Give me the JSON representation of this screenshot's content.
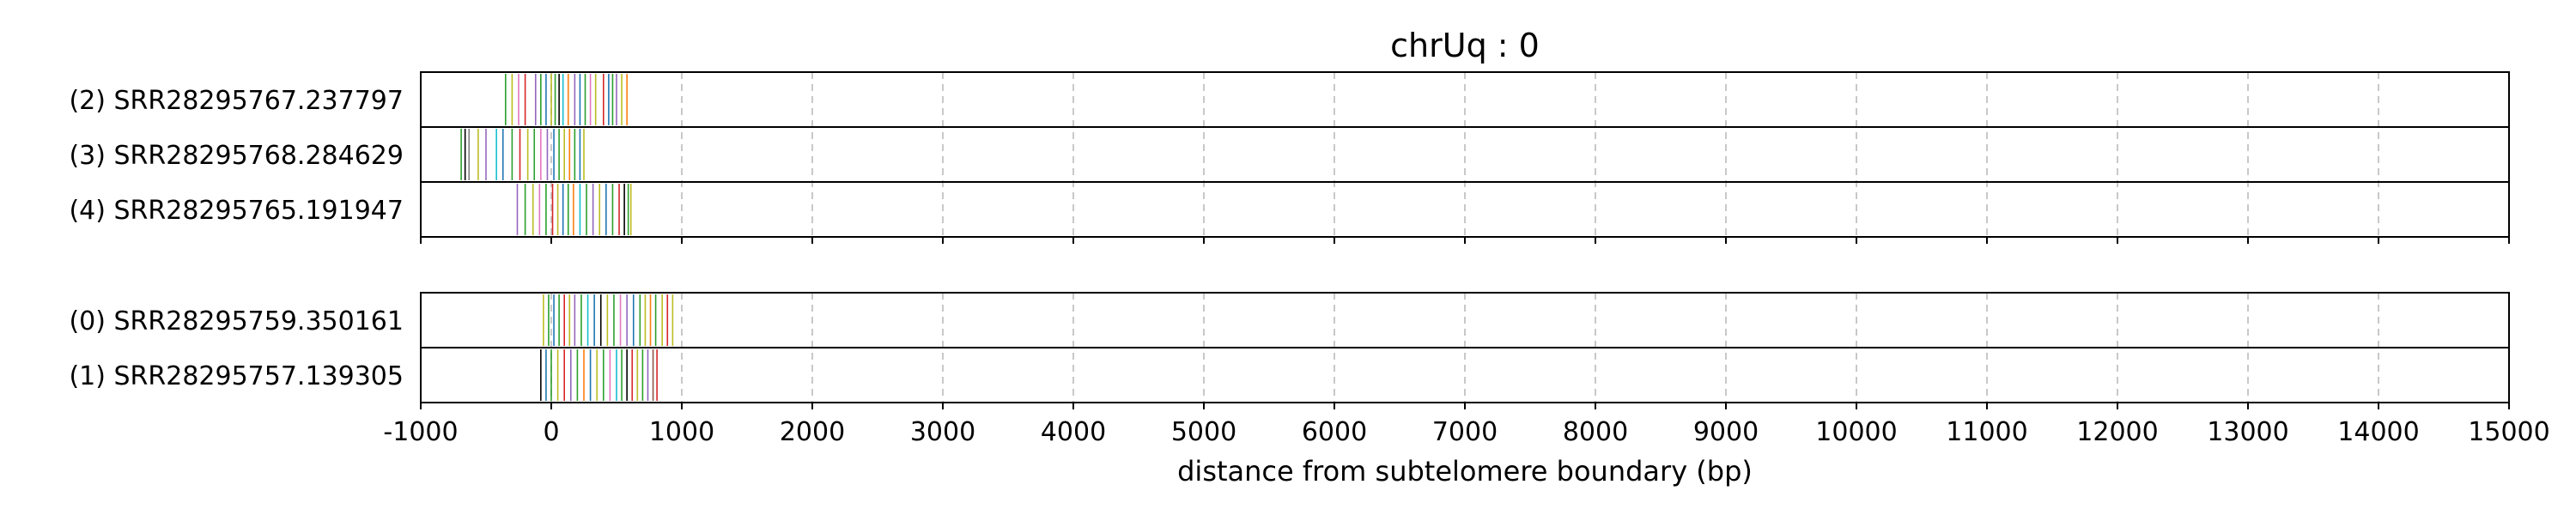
{
  "chart_data": {
    "type": "barcode-track",
    "title": "chrUq : 0",
    "xlabel": "distance from subtelomere boundary (bp)",
    "xlim": [
      -1000,
      15000
    ],
    "x_ticks": [
      -1000,
      0,
      1000,
      2000,
      3000,
      4000,
      5000,
      6000,
      7000,
      8000,
      9000,
      10000,
      11000,
      12000,
      13000,
      14000,
      15000
    ],
    "x_tick_labels": [
      "-1000",
      "0",
      "1000",
      "2000",
      "3000",
      "4000",
      "5000",
      "6000",
      "7000",
      "8000",
      "9000",
      "10000",
      "11000",
      "12000",
      "13000",
      "14000",
      "15000"
    ],
    "grid": "vertical dashed at x ticks",
    "mark_colors": [
      "#2ca02c",
      "#d62728",
      "#9467bd",
      "#1f77b4",
      "#bcbd22",
      "#ff7f0e",
      "#e377c2",
      "#17becf",
      "#000000",
      "#7f7f7f",
      "#8c564b"
    ],
    "groups": [
      {
        "reads": [
          {
            "label": "(2) SRR28295767.237797",
            "marks": [
              {
                "x": -350,
                "color": "#2ca02c"
              },
              {
                "x": -300,
                "color": "#bcbd22"
              },
              {
                "x": -250,
                "color": "#e377c2"
              },
              {
                "x": -200,
                "color": "#d62728"
              },
              {
                "x": -120,
                "color": "#9467bd"
              },
              {
                "x": -80,
                "color": "#2ca02c"
              },
              {
                "x": -40,
                "color": "#1f77b4"
              },
              {
                "x": 0,
                "color": "#bcbd22"
              },
              {
                "x": 30,
                "color": "#2ca02c"
              },
              {
                "x": 60,
                "color": "#000000"
              },
              {
                "x": 90,
                "color": "#17becf"
              },
              {
                "x": 130,
                "color": "#ff7f0e"
              },
              {
                "x": 180,
                "color": "#9467bd"
              },
              {
                "x": 220,
                "color": "#1f77b4"
              },
              {
                "x": 260,
                "color": "#2ca02c"
              },
              {
                "x": 300,
                "color": "#e377c2"
              },
              {
                "x": 340,
                "color": "#bcbd22"
              },
              {
                "x": 400,
                "color": "#d62728"
              },
              {
                "x": 440,
                "color": "#1f77b4"
              },
              {
                "x": 470,
                "color": "#2ca02c"
              },
              {
                "x": 500,
                "color": "#9467bd"
              },
              {
                "x": 540,
                "color": "#bcbd22"
              },
              {
                "x": 580,
                "color": "#ff7f0e"
              }
            ]
          },
          {
            "label": "(3) SRR28295768.284629",
            "marks": [
              {
                "x": -690,
                "color": "#2ca02c"
              },
              {
                "x": -660,
                "color": "#000000"
              },
              {
                "x": -630,
                "color": "#7f7f7f"
              },
              {
                "x": -560,
                "color": "#bcbd22"
              },
              {
                "x": -500,
                "color": "#9467bd"
              },
              {
                "x": -420,
                "color": "#17becf"
              },
              {
                "x": -370,
                "color": "#1f77b4"
              },
              {
                "x": -300,
                "color": "#2ca02c"
              },
              {
                "x": -240,
                "color": "#d62728"
              },
              {
                "x": -180,
                "color": "#bcbd22"
              },
              {
                "x": -130,
                "color": "#2ca02c"
              },
              {
                "x": -80,
                "color": "#e377c2"
              },
              {
                "x": -30,
                "color": "#9467bd"
              },
              {
                "x": 20,
                "color": "#1f77b4"
              },
              {
                "x": 60,
                "color": "#2ca02c"
              },
              {
                "x": 100,
                "color": "#bcbd22"
              },
              {
                "x": 140,
                "color": "#ff7f0e"
              },
              {
                "x": 180,
                "color": "#2ca02c"
              },
              {
                "x": 220,
                "color": "#1f77b4"
              },
              {
                "x": 250,
                "color": "#bcbd22"
              }
            ]
          },
          {
            "label": "(4) SRR28295765.191947",
            "marks": [
              {
                "x": -260,
                "color": "#9467bd"
              },
              {
                "x": -200,
                "color": "#2ca02c"
              },
              {
                "x": -140,
                "color": "#bcbd22"
              },
              {
                "x": -90,
                "color": "#e377c2"
              },
              {
                "x": -40,
                "color": "#2ca02c"
              },
              {
                "x": 10,
                "color": "#d62728"
              },
              {
                "x": 50,
                "color": "#bcbd22"
              },
              {
                "x": 90,
                "color": "#1f77b4"
              },
              {
                "x": 130,
                "color": "#2ca02c"
              },
              {
                "x": 170,
                "color": "#ff7f0e"
              },
              {
                "x": 220,
                "color": "#17becf"
              },
              {
                "x": 270,
                "color": "#2ca02c"
              },
              {
                "x": 320,
                "color": "#9467bd"
              },
              {
                "x": 370,
                "color": "#bcbd22"
              },
              {
                "x": 420,
                "color": "#1f77b4"
              },
              {
                "x": 470,
                "color": "#2ca02c"
              },
              {
                "x": 520,
                "color": "#d62728"
              },
              {
                "x": 560,
                "color": "#000000"
              },
              {
                "x": 590,
                "color": "#2ca02c"
              },
              {
                "x": 610,
                "color": "#bcbd22"
              }
            ]
          }
        ]
      },
      {
        "reads": [
          {
            "label": "(0) SRR28295759.350161",
            "marks": [
              {
                "x": -60,
                "color": "#bcbd22"
              },
              {
                "x": -20,
                "color": "#2ca02c"
              },
              {
                "x": 20,
                "color": "#1f77b4"
              },
              {
                "x": 60,
                "color": "#2ca02c"
              },
              {
                "x": 100,
                "color": "#d62728"
              },
              {
                "x": 140,
                "color": "#bcbd22"
              },
              {
                "x": 180,
                "color": "#9467bd"
              },
              {
                "x": 230,
                "color": "#2ca02c"
              },
              {
                "x": 280,
                "color": "#17becf"
              },
              {
                "x": 330,
                "color": "#1f77b4"
              },
              {
                "x": 380,
                "color": "#000000"
              },
              {
                "x": 430,
                "color": "#bcbd22"
              },
              {
                "x": 480,
                "color": "#2ca02c"
              },
              {
                "x": 530,
                "color": "#e377c2"
              },
              {
                "x": 580,
                "color": "#9467bd"
              },
              {
                "x": 630,
                "color": "#1f77b4"
              },
              {
                "x": 680,
                "color": "#2ca02c"
              },
              {
                "x": 720,
                "color": "#bcbd22"
              },
              {
                "x": 760,
                "color": "#ff7f0e"
              },
              {
                "x": 800,
                "color": "#2ca02c"
              },
              {
                "x": 850,
                "color": "#bcbd22"
              },
              {
                "x": 890,
                "color": "#d62728"
              },
              {
                "x": 930,
                "color": "#bcbd22"
              }
            ]
          },
          {
            "label": "(1) SRR28295757.139305",
            "marks": [
              {
                "x": -80,
                "color": "#000000"
              },
              {
                "x": -40,
                "color": "#1f77b4"
              },
              {
                "x": 0,
                "color": "#2ca02c"
              },
              {
                "x": 50,
                "color": "#bcbd22"
              },
              {
                "x": 100,
                "color": "#d62728"
              },
              {
                "x": 150,
                "color": "#9467bd"
              },
              {
                "x": 200,
                "color": "#2ca02c"
              },
              {
                "x": 250,
                "color": "#ff7f0e"
              },
              {
                "x": 300,
                "color": "#1f77b4"
              },
              {
                "x": 350,
                "color": "#bcbd22"
              },
              {
                "x": 400,
                "color": "#2ca02c"
              },
              {
                "x": 450,
                "color": "#e377c2"
              },
              {
                "x": 500,
                "color": "#17becf"
              },
              {
                "x": 540,
                "color": "#2ca02c"
              },
              {
                "x": 580,
                "color": "#000000"
              },
              {
                "x": 620,
                "color": "#d62728"
              },
              {
                "x": 660,
                "color": "#bcbd22"
              },
              {
                "x": 700,
                "color": "#2ca02c"
              },
              {
                "x": 740,
                "color": "#9467bd"
              },
              {
                "x": 780,
                "color": "#8c564b"
              },
              {
                "x": 810,
                "color": "#d62728"
              }
            ]
          }
        ]
      }
    ]
  }
}
